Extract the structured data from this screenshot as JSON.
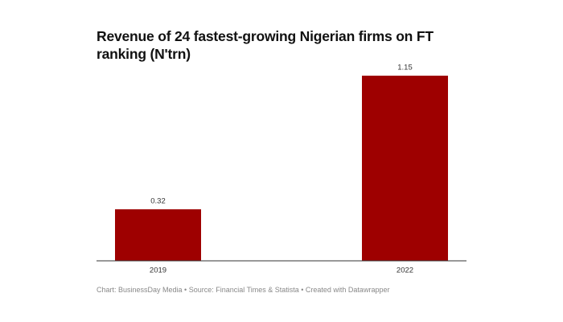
{
  "chart_data": {
    "type": "bar",
    "title": "Revenue of 24 fastest-growing Nigerian firms on FT ranking (N'trn)",
    "categories": [
      "2019",
      "2022"
    ],
    "values": [
      0.32,
      1.15
    ],
    "color": "#9e0000",
    "source": "Chart: BusinessDay Media • Source: Financial Times & Statista • Created with Datawrapper"
  }
}
